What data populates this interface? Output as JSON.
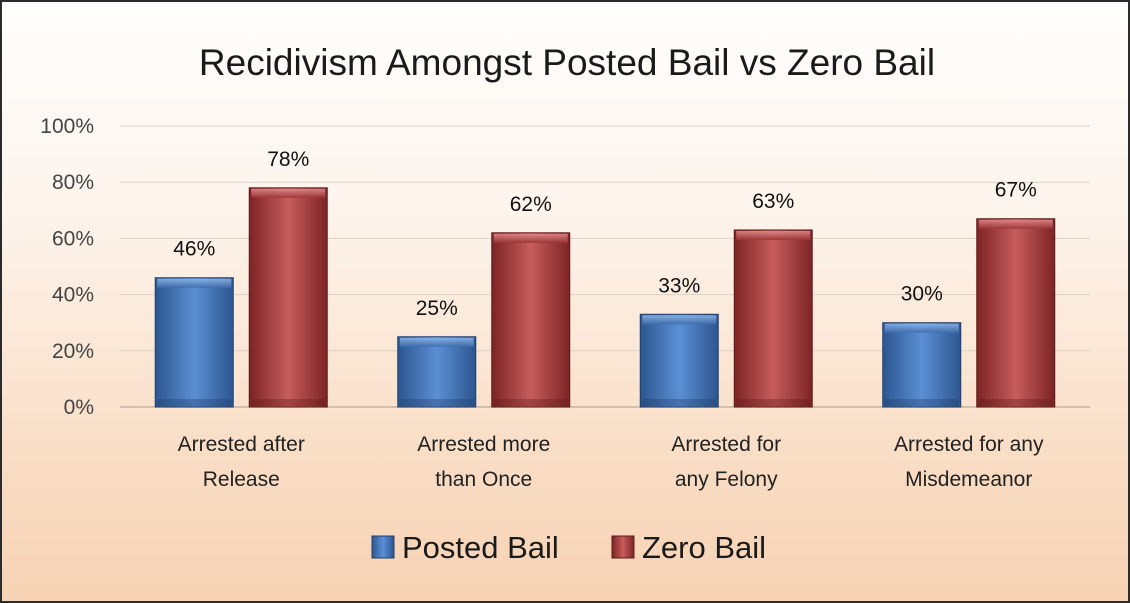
{
  "chart_data": {
    "type": "bar",
    "title": "Recidivism Amongst Posted Bail vs Zero Bail",
    "categories": [
      [
        "Arrested after",
        "Release"
      ],
      [
        "Arrested more",
        "than Once"
      ],
      [
        "Arrested for",
        "any Felony"
      ],
      [
        "Arrested for any",
        "Misdemeanor"
      ]
    ],
    "series": [
      {
        "name": "Posted Bail",
        "values": [
          46,
          25,
          33,
          30
        ],
        "labels": [
          "46%",
          "25%",
          "33%",
          "30%"
        ],
        "color": "#4a7dc0"
      },
      {
        "name": "Zero Bail",
        "values": [
          78,
          62,
          63,
          67
        ],
        "labels": [
          "78%",
          "62%",
          "63%",
          "67%"
        ],
        "color": "#b54a4a"
      }
    ],
    "ylim": [
      0,
      100
    ],
    "yticks": [
      "0%",
      "20%",
      "40%",
      "60%",
      "80%",
      "100%"
    ],
    "ytick_values": [
      0,
      20,
      40,
      60,
      80,
      100
    ],
    "grid": true,
    "legend": "bottom"
  }
}
